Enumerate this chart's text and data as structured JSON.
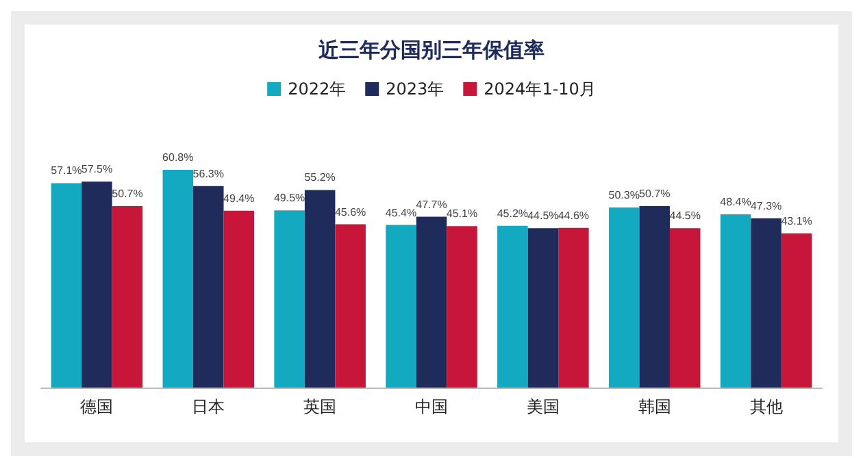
{
  "chart_data": {
    "type": "bar",
    "title": "近三年分国别三年保值率",
    "categories": [
      "德国",
      "日本",
      "英国",
      "中国",
      "美国",
      "韩国",
      "其他"
    ],
    "series": [
      {
        "name": "2022年",
        "color": "#13a9c1",
        "values": [
          57.1,
          60.8,
          49.5,
          45.4,
          45.2,
          50.3,
          48.4
        ],
        "value_labels": [
          "57.1%",
          "60.8%",
          "49.5%",
          "45.4%",
          "45.2%",
          "50.3%",
          "48.4%"
        ]
      },
      {
        "name": "2023年",
        "color": "#1f2b5b",
        "values": [
          57.5,
          56.3,
          55.2,
          47.7,
          44.5,
          50.7,
          47.3
        ],
        "value_labels": [
          "57.5%",
          "56.3%",
          "55.2%",
          "47.7%",
          "44.5%",
          "50.7%",
          "47.3%"
        ]
      },
      {
        "name": "2024年1-10月",
        "color": "#c8163a",
        "values": [
          50.7,
          49.4,
          45.6,
          45.1,
          44.6,
          44.5,
          43.1
        ],
        "value_labels": [
          "50.7%",
          "49.4%",
          "45.6%",
          "45.1%",
          "44.6%",
          "44.5%",
          "43.1%"
        ]
      }
    ],
    "tick_labels": "x",
    "legend": "top"
  }
}
